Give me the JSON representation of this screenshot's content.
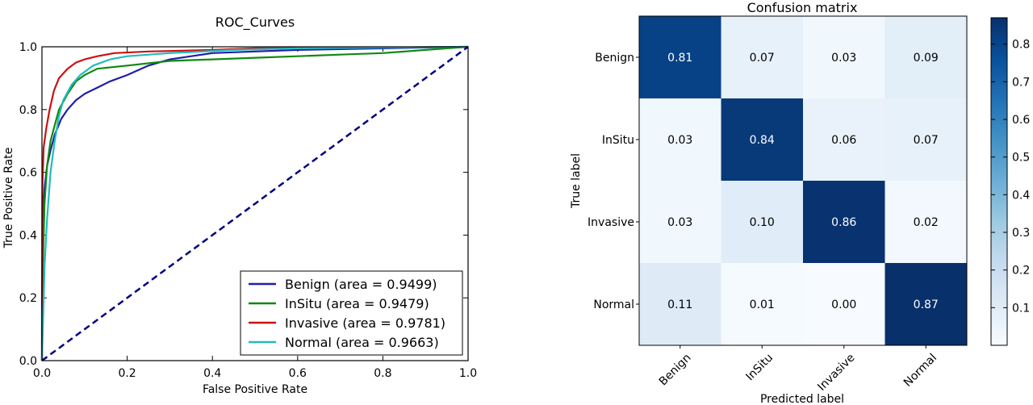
{
  "chart_data": [
    {
      "type": "line",
      "title": "ROC_Curves",
      "xlabel": "False Positive Rate",
      "ylabel": "True Positive Rate",
      "xlim": [
        0.0,
        1.0
      ],
      "ylim": [
        0.0,
        1.0
      ],
      "x_ticks": [
        "0.0",
        "0.2",
        "0.4",
        "0.6",
        "0.8",
        "1.0"
      ],
      "y_ticks": [
        "0.0",
        "0.2",
        "0.4",
        "0.6",
        "0.8",
        "1.0"
      ],
      "grid": false,
      "legend_position": "bottom-right",
      "series": [
        {
          "name": "Benign (area = 0.9499)",
          "color": "#1f1fa8",
          "points": [
            [
              0,
              0
            ],
            [
              0,
              0.2
            ],
            [
              0.002,
              0.45
            ],
            [
              0.006,
              0.55
            ],
            [
              0.012,
              0.62
            ],
            [
              0.02,
              0.67
            ],
            [
              0.03,
              0.72
            ],
            [
              0.045,
              0.77
            ],
            [
              0.06,
              0.8
            ],
            [
              0.08,
              0.83
            ],
            [
              0.1,
              0.85
            ],
            [
              0.13,
              0.87
            ],
            [
              0.16,
              0.89
            ],
            [
              0.2,
              0.91
            ],
            [
              0.25,
              0.94
            ],
            [
              0.3,
              0.96
            ],
            [
              0.35,
              0.97
            ],
            [
              0.4,
              0.98
            ],
            [
              0.5,
              0.985
            ],
            [
              0.6,
              0.99
            ],
            [
              0.8,
              0.995
            ],
            [
              1,
              1
            ]
          ]
        },
        {
          "name": "InSitu (area = 0.9479)",
          "color": "#118811",
          "points": [
            [
              0,
              0
            ],
            [
              0.002,
              0.3
            ],
            [
              0.006,
              0.5
            ],
            [
              0.012,
              0.62
            ],
            [
              0.02,
              0.7
            ],
            [
              0.03,
              0.75
            ],
            [
              0.04,
              0.8
            ],
            [
              0.06,
              0.85
            ],
            [
              0.08,
              0.89
            ],
            [
              0.1,
              0.91
            ],
            [
              0.13,
              0.93
            ],
            [
              0.2,
              0.94
            ],
            [
              0.3,
              0.955
            ],
            [
              0.4,
              0.96
            ],
            [
              0.5,
              0.965
            ],
            [
              0.6,
              0.97
            ],
            [
              0.7,
              0.975
            ],
            [
              0.8,
              0.98
            ],
            [
              0.9,
              0.99
            ],
            [
              1,
              1
            ]
          ]
        },
        {
          "name": "Invasive (area = 0.9781)",
          "color": "#cc1111",
          "points": [
            [
              0,
              0
            ],
            [
              0.001,
              0.55
            ],
            [
              0.004,
              0.68
            ],
            [
              0.01,
              0.74
            ],
            [
              0.018,
              0.8
            ],
            [
              0.028,
              0.86
            ],
            [
              0.04,
              0.9
            ],
            [
              0.06,
              0.93
            ],
            [
              0.08,
              0.95
            ],
            [
              0.1,
              0.96
            ],
            [
              0.13,
              0.97
            ],
            [
              0.17,
              0.98
            ],
            [
              0.25,
              0.985
            ],
            [
              0.4,
              0.99
            ],
            [
              0.5,
              0.995
            ],
            [
              0.7,
              0.997
            ],
            [
              1,
              1
            ]
          ]
        },
        {
          "name": "Normal (area = 0.9663)",
          "color": "#22bbbb",
          "points": [
            [
              0,
              0
            ],
            [
              0.002,
              0.1
            ],
            [
              0.006,
              0.3
            ],
            [
              0.012,
              0.45
            ],
            [
              0.02,
              0.6
            ],
            [
              0.03,
              0.7
            ],
            [
              0.04,
              0.78
            ],
            [
              0.05,
              0.83
            ],
            [
              0.07,
              0.88
            ],
            [
              0.09,
              0.91
            ],
            [
              0.12,
              0.94
            ],
            [
              0.16,
              0.96
            ],
            [
              0.2,
              0.97
            ],
            [
              0.3,
              0.98
            ],
            [
              0.45,
              0.99
            ],
            [
              0.6,
              0.995
            ],
            [
              0.8,
              0.998
            ],
            [
              1,
              1
            ]
          ]
        },
        {
          "name": "",
          "color": "#000080",
          "style": "dashed",
          "points": [
            [
              0,
              0
            ],
            [
              1,
              1
            ]
          ]
        }
      ]
    },
    {
      "type": "heatmap",
      "title": "Confusion matrix",
      "xlabel": "Predicted label",
      "ylabel": "True label",
      "x_categories": [
        "Benign",
        "InSitu",
        "Invasive",
        "Normal"
      ],
      "y_categories": [
        "Benign",
        "InSitu",
        "Invasive",
        "Normal"
      ],
      "values": [
        [
          0.81,
          0.07,
          0.03,
          0.09
        ],
        [
          0.03,
          0.84,
          0.06,
          0.07
        ],
        [
          0.03,
          0.1,
          0.86,
          0.02
        ],
        [
          0.11,
          0.01,
          0.0,
          0.87
        ]
      ],
      "value_labels": [
        [
          "0.81",
          "0.07",
          "0.03",
          "0.09"
        ],
        [
          "0.03",
          "0.84",
          "0.06",
          "0.07"
        ],
        [
          "0.03",
          "0.10",
          "0.86",
          "0.02"
        ],
        [
          "0.11",
          "0.01",
          "0.00",
          "0.87"
        ]
      ],
      "colormap": "Blues",
      "colorbar_range": [
        0.0,
        0.87
      ],
      "colorbar_ticks": [
        "0.1",
        "0.2",
        "0.3",
        "0.4",
        "0.5",
        "0.6",
        "0.7",
        "0.8"
      ]
    }
  ]
}
